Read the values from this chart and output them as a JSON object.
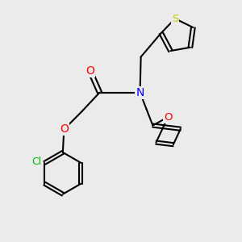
{
  "bg_color": "#ebebeb",
  "bond_color": "#000000",
  "atom_colors": {
    "O": "#ff0000",
    "N": "#0000ff",
    "S": "#cccc00",
    "Cl": "#00bb00",
    "C": "#000000"
  },
  "bond_width": 1.5,
  "figsize": [
    3.0,
    3.0
  ],
  "dpi": 100
}
